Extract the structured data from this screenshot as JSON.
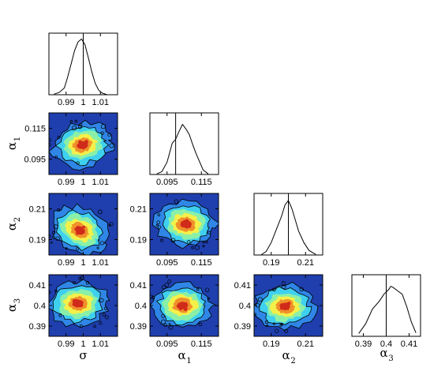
{
  "chart_data": {
    "type": "corner-plot",
    "parameters": [
      {
        "symbol": "σ",
        "subscript": "",
        "true_value": 1.0,
        "range": [
          0.98,
          1.02
        ],
        "ticks": [
          0.99,
          1,
          1.01
        ],
        "tick_labels": [
          "0.99",
          "1",
          "1.01"
        ]
      },
      {
        "symbol": "α",
        "subscript": "1",
        "true_value": 0.1,
        "range": [
          0.085,
          0.125
        ],
        "ticks": [
          0.095,
          0.115
        ],
        "tick_labels": [
          "0.095",
          "0.115"
        ]
      },
      {
        "symbol": "α",
        "subscript": "2",
        "true_value": 0.2,
        "range": [
          0.18,
          0.22
        ],
        "ticks": [
          0.19,
          0.21
        ],
        "tick_labels": [
          "0.19",
          "0.21"
        ]
      },
      {
        "symbol": "α",
        "subscript": "3",
        "true_value": 0.4,
        "range": [
          0.385,
          0.415
        ],
        "ticks": [
          0.39,
          0.4,
          0.41
        ],
        "tick_labels": [
          "0.39",
          "0.4",
          "0.41"
        ]
      }
    ],
    "marginals": [
      {
        "param": 0,
        "line_at": 1.0,
        "x": [
          0.983,
          0.986,
          0.989,
          0.991,
          0.993,
          0.995,
          0.997,
          0.999,
          1.001,
          1.003,
          1.005,
          1.007,
          1.009,
          1.011,
          1.014
        ],
        "y": [
          0.01,
          0.04,
          0.12,
          0.32,
          0.55,
          0.78,
          0.93,
          0.98,
          0.88,
          0.65,
          0.4,
          0.2,
          0.08,
          0.03,
          0.0
        ]
      },
      {
        "param": 1,
        "line_at": 0.1,
        "x": [
          0.089,
          0.092,
          0.095,
          0.098,
          0.1,
          0.102,
          0.104,
          0.106,
          0.108,
          0.11,
          0.112,
          0.114,
          0.116,
          0.119
        ],
        "y": [
          0.01,
          0.05,
          0.22,
          0.55,
          0.62,
          0.76,
          0.88,
          0.8,
          0.7,
          0.52,
          0.36,
          0.22,
          0.08,
          0.01
        ]
      },
      {
        "param": 2,
        "line_at": 0.2,
        "x": [
          0.184,
          0.187,
          0.19,
          0.193,
          0.196,
          0.198,
          0.2,
          0.202,
          0.204,
          0.206,
          0.209,
          0.212,
          0.216
        ],
        "y": [
          0.0,
          0.06,
          0.22,
          0.45,
          0.68,
          0.88,
          0.96,
          0.82,
          0.62,
          0.42,
          0.22,
          0.08,
          0.01
        ]
      },
      {
        "param": 3,
        "line_at": 0.4,
        "x": [
          0.388,
          0.391,
          0.394,
          0.397,
          0.399,
          0.401,
          0.402,
          0.403,
          0.405,
          0.407,
          0.409,
          0.411,
          0.413
        ],
        "y": [
          0.05,
          0.22,
          0.48,
          0.62,
          0.74,
          0.82,
          0.88,
          0.86,
          0.8,
          0.74,
          0.52,
          0.25,
          0.06
        ]
      }
    ],
    "joint": [
      {
        "x_param": 0,
        "y_param": 1,
        "center": [
          0.9995,
          0.104
        ],
        "correlation": 0.2
      },
      {
        "x_param": 0,
        "y_param": 2,
        "center": [
          0.998,
          0.196
        ],
        "correlation": -0.55
      },
      {
        "x_param": 1,
        "y_param": 2,
        "center": [
          0.106,
          0.2
        ],
        "correlation": -0.15
      },
      {
        "x_param": 0,
        "y_param": 3,
        "center": [
          0.997,
          0.401
        ],
        "correlation": 0.1
      },
      {
        "x_param": 1,
        "y_param": 3,
        "center": [
          0.104,
          0.4
        ],
        "correlation": 0.0
      },
      {
        "x_param": 2,
        "y_param": 3,
        "center": [
          0.198,
          0.3995
        ],
        "correlation": 0.0
      }
    ],
    "colormap": [
      "#1f3fae",
      "#2f86e6",
      "#3fd0f0",
      "#8af0a8",
      "#f4f04a",
      "#f0902a",
      "#d02a1a"
    ],
    "background_color": "#1f3fae",
    "grid": false,
    "legend": "none"
  }
}
